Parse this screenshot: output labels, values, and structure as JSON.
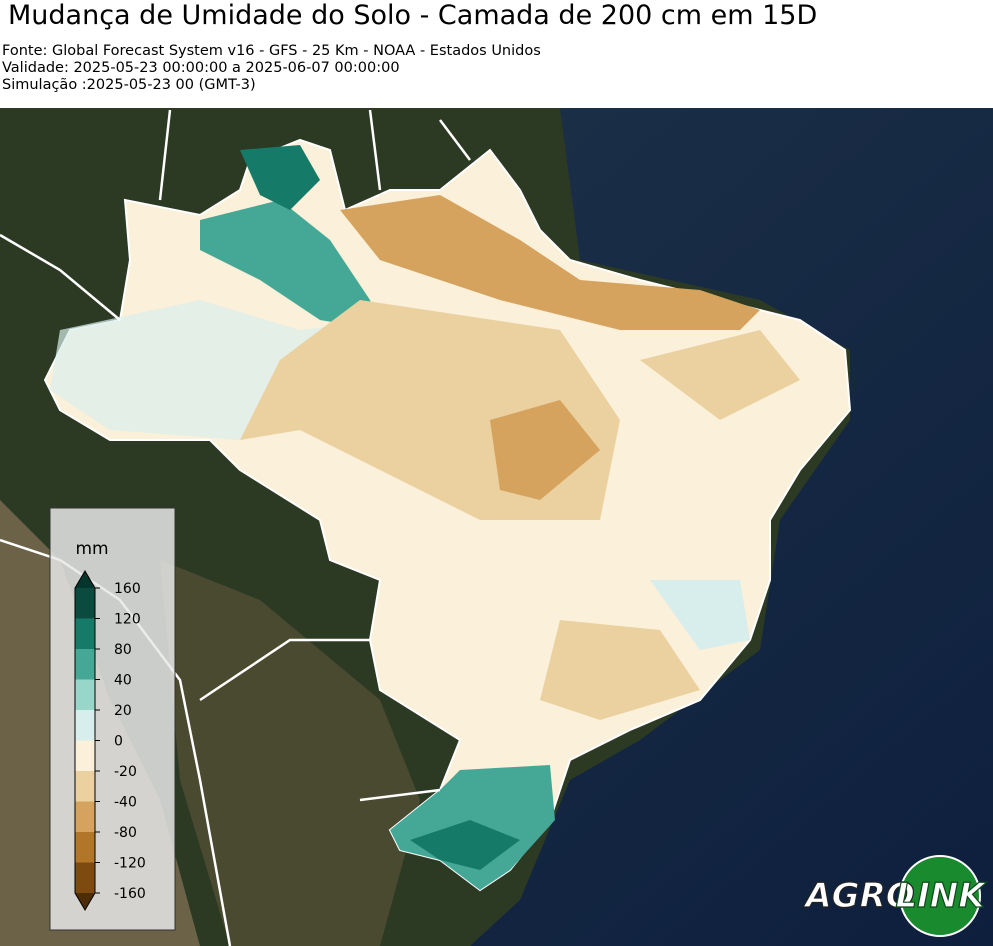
{
  "header": {
    "title": "Mudança de Umidade do Solo - Camada de 200 cm em 15D",
    "lines": [
      "Fonte: Global Forecast System v16 - GFS - 25 Km - NOAA - Estados Unidos",
      "Validade: 2025-05-23 00:00:00 a 2025-06-07 00:00:00",
      "Simulação :2025-05-23 00 (GMT-3)"
    ]
  },
  "legend": {
    "unit": "mm",
    "ticks": [
      160,
      120,
      80,
      40,
      20,
      0,
      -20,
      -40,
      -80,
      -120,
      -160
    ],
    "colors": [
      "#0b4a3e",
      "#167a69",
      "#45a897",
      "#98d6ca",
      "#d8eeec",
      "#fbf0da",
      "#ebd19f",
      "#d5a35e",
      "#b27628",
      "#7d4b10"
    ],
    "extend_colors": [
      "#04352c",
      "#4d2d05"
    ]
  },
  "logo": {
    "left": "AGRO",
    "right": "LINK"
  }
}
